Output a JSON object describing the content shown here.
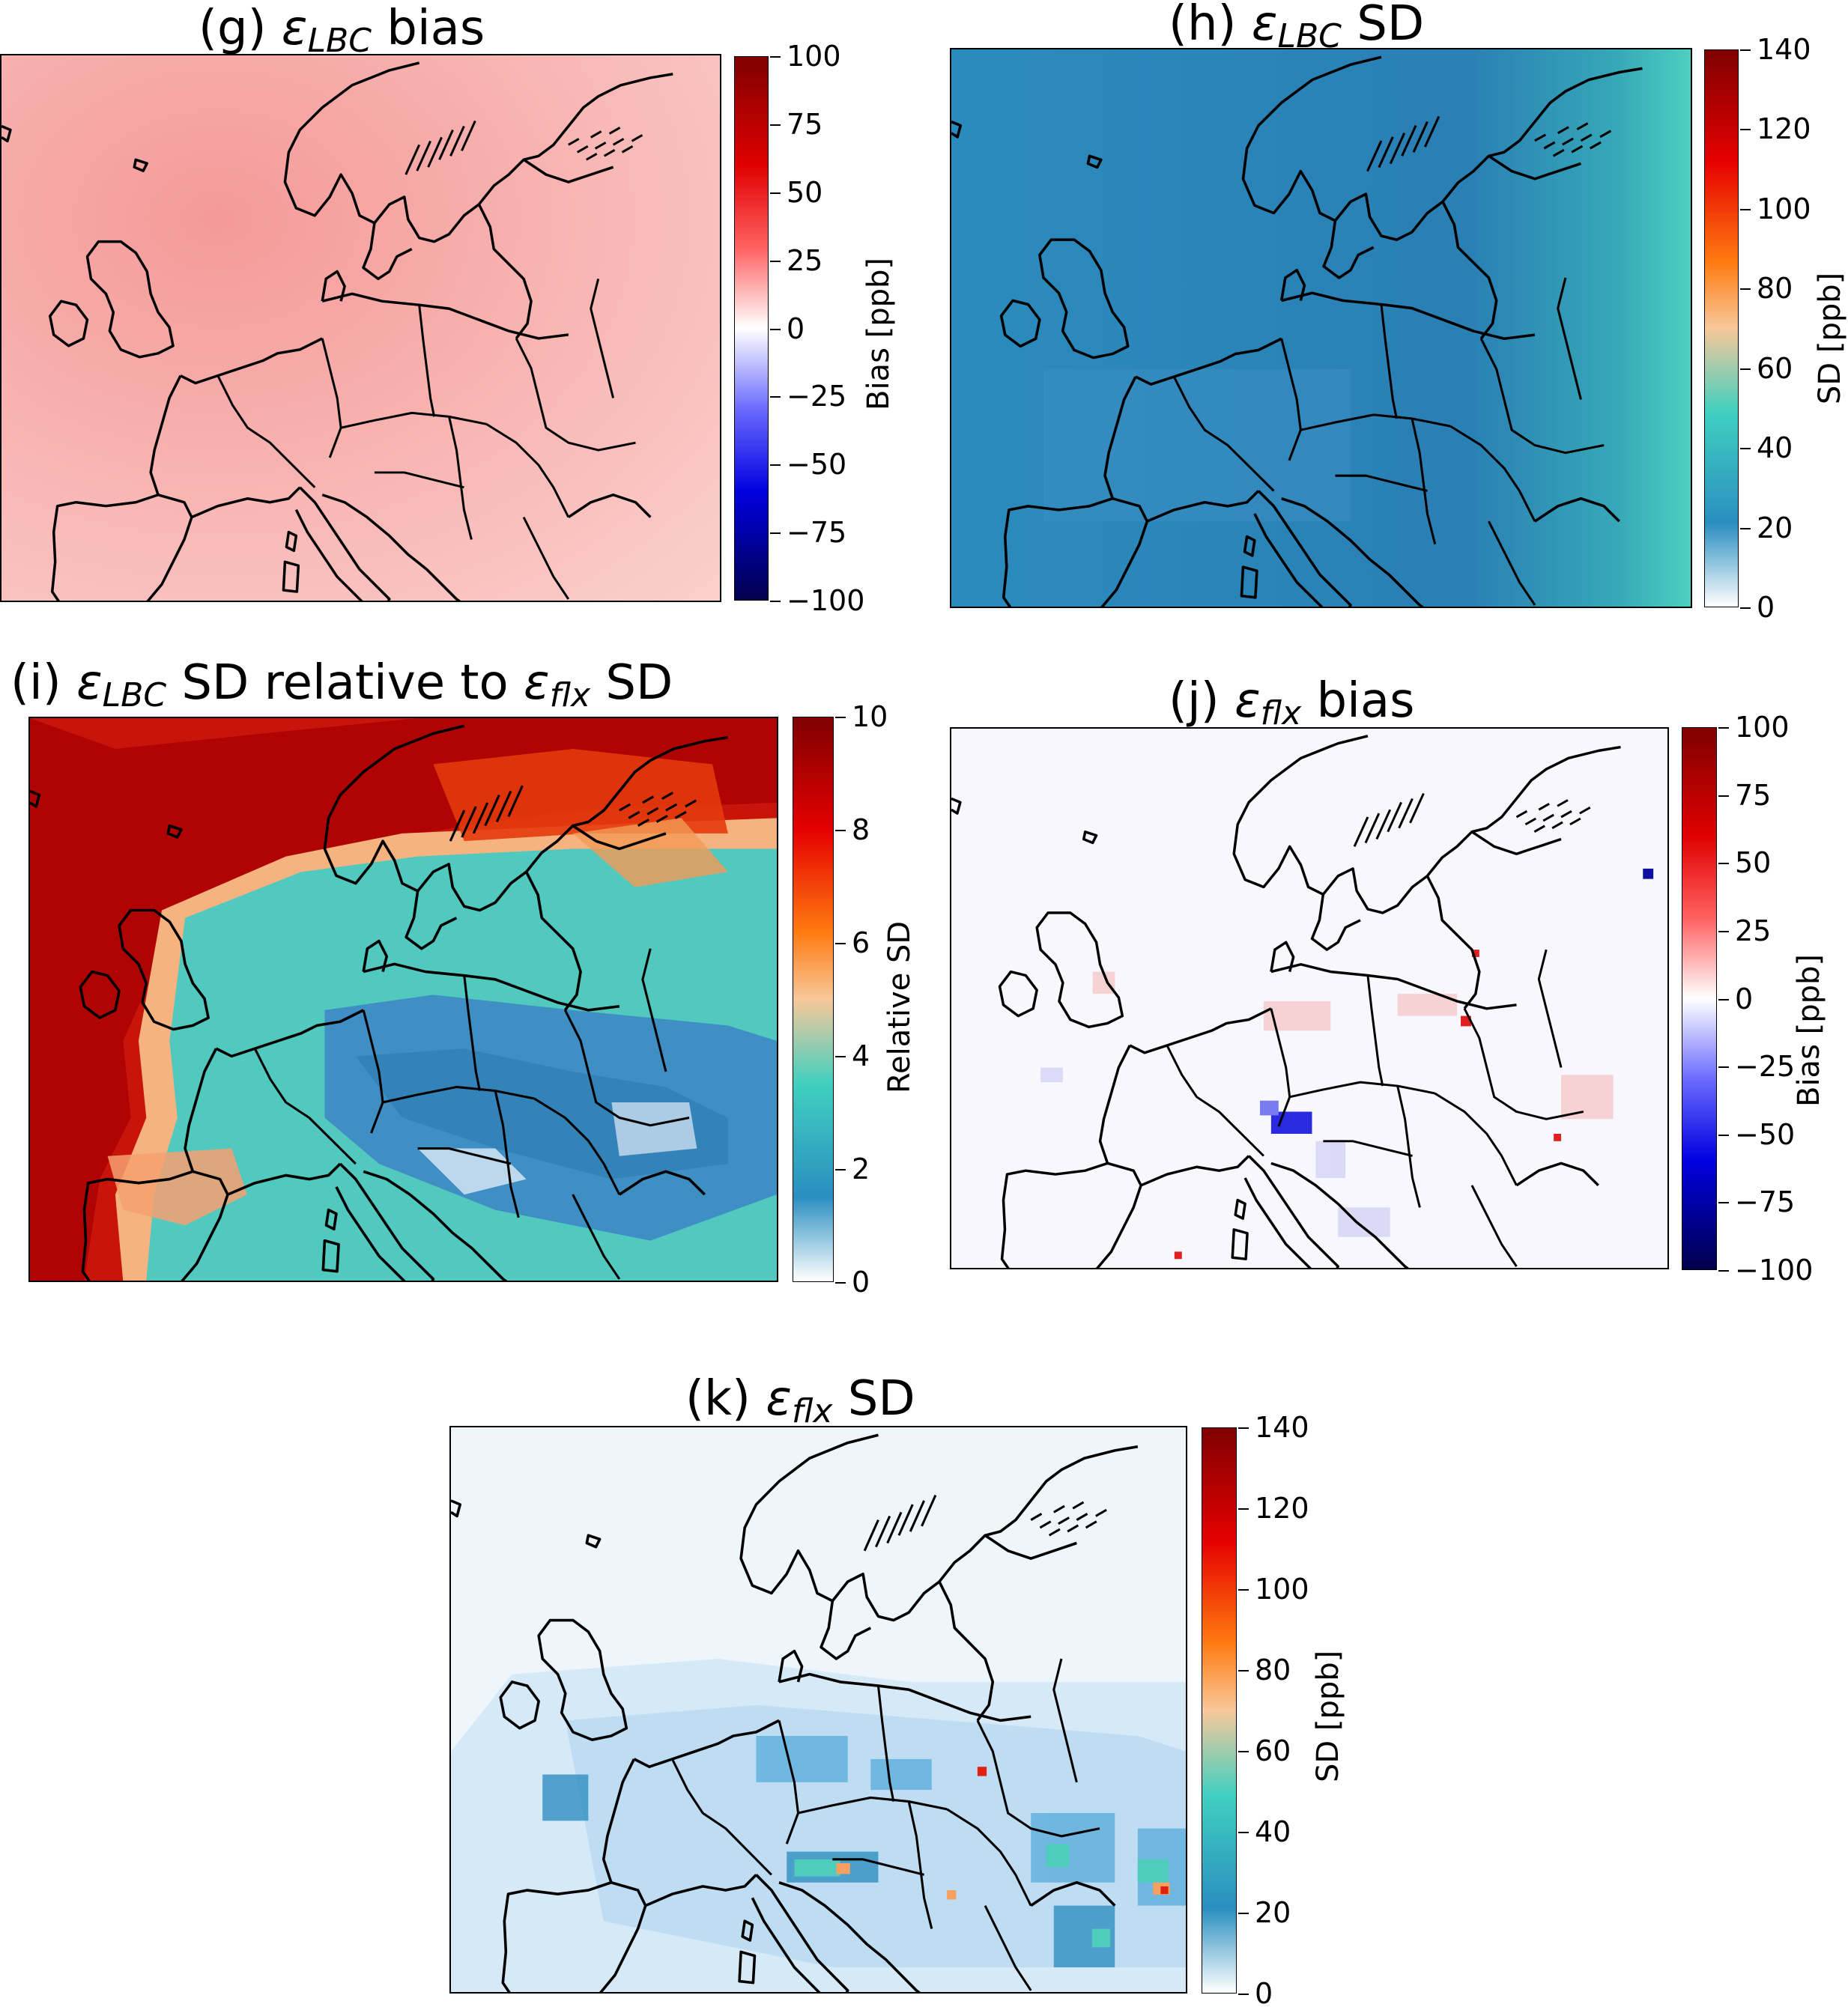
{
  "panels": {
    "g": {
      "prefix": "(g) ",
      "symbol": "ε",
      "subscript": "LBC",
      "suffix": " bias",
      "colorbar_label": "Bias [ppb]",
      "ticks": [
        "100",
        "75",
        "50",
        "25",
        "0",
        "−25",
        "−50",
        "−75",
        "−100"
      ],
      "colormap": "seismic",
      "range": [
        -100,
        100
      ]
    },
    "h": {
      "prefix": "(h) ",
      "symbol": "ε",
      "subscript": "LBC",
      "suffix": " SD",
      "colorbar_label": "SD [ppb]",
      "ticks": [
        "140",
        "120",
        "100",
        "80",
        "60",
        "40",
        "20",
        "0"
      ],
      "colormap": "white-blue-teal-orange-red",
      "range": [
        0,
        140
      ]
    },
    "i": {
      "prefix": "(i) ",
      "symbol": "ε",
      "subscript": "LBC",
      "mid": " SD relative to ",
      "symbol2": "ε",
      "subscript2": "flx",
      "suffix": " SD",
      "colorbar_label": "Relative SD",
      "ticks": [
        "10",
        "8",
        "6",
        "4",
        "2",
        "0"
      ],
      "colormap": "white-blue-teal-orange-red",
      "range": [
        0,
        10
      ]
    },
    "j": {
      "prefix": "(j) ",
      "symbol": "ε",
      "subscript": "flx",
      "suffix": " bias",
      "colorbar_label": "Bias [ppb]",
      "ticks": [
        "100",
        "75",
        "50",
        "25",
        "0",
        "−25",
        "−50",
        "−75",
        "−100"
      ],
      "colormap": "seismic",
      "range": [
        -100,
        100
      ]
    },
    "k": {
      "prefix": "(k) ",
      "symbol": "ε",
      "subscript": "flx",
      "suffix": " SD",
      "colorbar_label": "SD [ppb]",
      "ticks": [
        "140",
        "120",
        "100",
        "80",
        "60",
        "40",
        "20",
        "0"
      ],
      "colormap": "white-blue-teal-orange-red",
      "range": [
        0,
        140
      ]
    }
  },
  "colors": {
    "bias_fill_g": "#f6a4a2",
    "sd_fill_h": "#2a86b8",
    "rel_hot": "#c40a05",
    "rel_teal": "#4fc8c0",
    "rel_blue": "#3f8fc4",
    "flx_bias_fill": "#f7f7fd",
    "flx_sd_fill": "#dcedf8",
    "coast": "#000000"
  }
}
